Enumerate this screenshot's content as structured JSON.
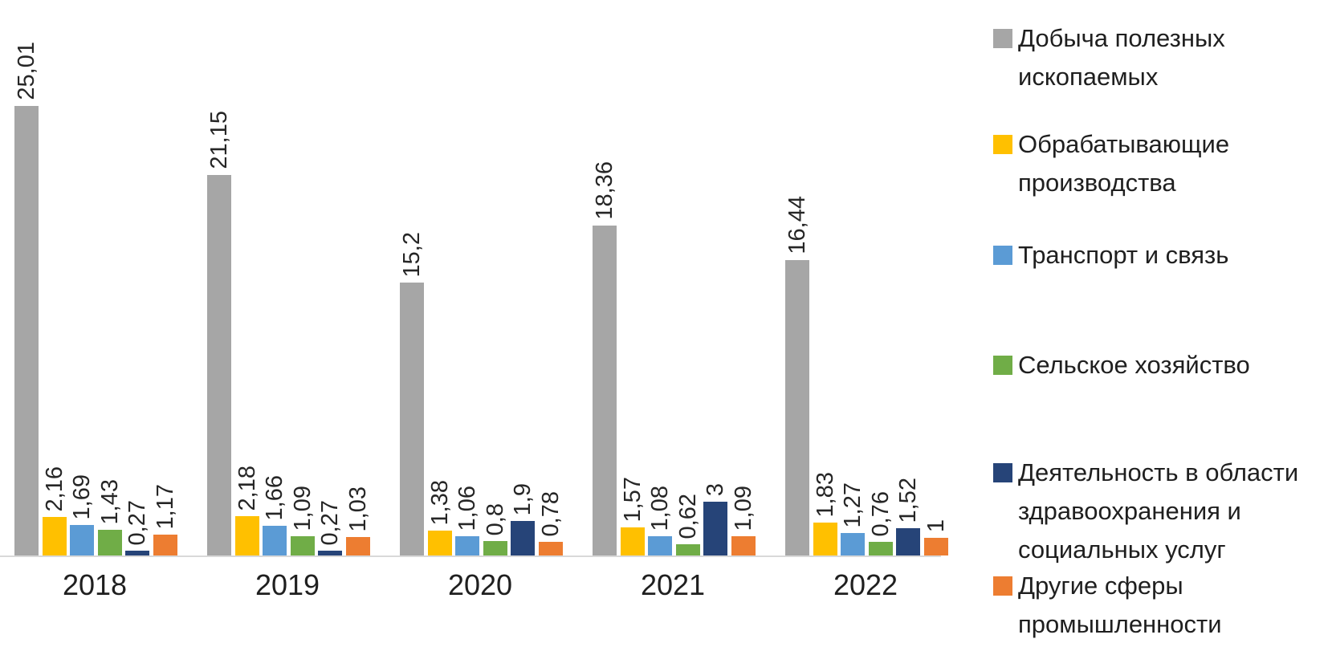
{
  "chart_data": {
    "type": "bar",
    "title": "",
    "xlabel": "",
    "ylabel": "",
    "ylim": [
      0,
      27
    ],
    "grid": false,
    "legend_position": "right",
    "decimal_separator": ",",
    "categories": [
      "2018",
      "2019",
      "2020",
      "2021",
      "2022"
    ],
    "series": [
      {
        "name": "Добыча полезных ископаемых",
        "color": "#a6a6a6",
        "values": [
          25.01,
          21.15,
          15.2,
          18.36,
          16.44
        ],
        "labels": [
          "25,01",
          "21,15",
          "15,2",
          "18,36",
          "16,44"
        ]
      },
      {
        "name": "Обрабатывающие производства",
        "color": "#ffc000",
        "values": [
          2.16,
          2.18,
          1.38,
          1.57,
          1.83
        ],
        "labels": [
          "2,16",
          "2,18",
          "1,38",
          "1,57",
          "1,83"
        ]
      },
      {
        "name": "Транспорт и связь",
        "color": "#5b9bd5",
        "values": [
          1.69,
          1.66,
          1.06,
          1.08,
          1.27
        ],
        "labels": [
          "1,69",
          "1,66",
          "1,06",
          "1,08",
          "1,27"
        ]
      },
      {
        "name": "Сельское хозяйство",
        "color": "#70ad47",
        "values": [
          1.43,
          1.09,
          0.8,
          0.62,
          0.76
        ],
        "labels": [
          "1,43",
          "1,09",
          "0,8",
          "0,62",
          "0,76"
        ]
      },
      {
        "name": "Деятельность в области здравоохранения и социальных услуг",
        "color": "#264478",
        "values": [
          0.27,
          0.27,
          1.9,
          3,
          1.52
        ],
        "labels": [
          "0,27",
          "0,27",
          "1,9",
          "3",
          "1,52"
        ]
      },
      {
        "name": "Другие сферы промышленности",
        "color": "#ed7d31",
        "values": [
          1.17,
          1.03,
          0.78,
          1.09,
          1
        ],
        "labels": [
          "1,17",
          "1,03",
          "0,78",
          "1,09",
          "1"
        ]
      }
    ]
  },
  "x_axis": {
    "labels": [
      "2018",
      "2019",
      "2020",
      "2021",
      "2022"
    ]
  },
  "legend": {
    "items": [
      {
        "label": "Добыча полезных\nископаемых",
        "color": "#a6a6a6"
      },
      {
        "label": "Обрабатывающие\nпроизводства",
        "color": "#ffc000"
      },
      {
        "label": "Транспорт и связь",
        "color": "#5b9bd5"
      },
      {
        "label": "Сельское хозяйство",
        "color": "#70ad47"
      },
      {
        "label": "Деятельность в области\nздравоохранения и\nсоциальных услуг",
        "color": "#264478"
      },
      {
        "label": "Другие сферы\nпромышленности",
        "color": "#ed7d31"
      }
    ]
  }
}
